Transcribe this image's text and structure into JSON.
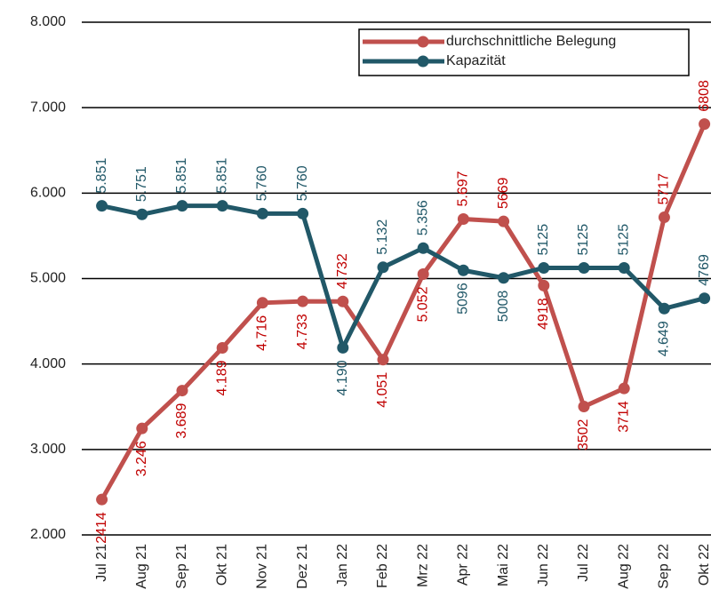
{
  "chart_data": {
    "type": "line",
    "categories": [
      "Jul 21",
      "Aug 21",
      "Sep 21",
      "Okt 21",
      "Nov 21",
      "Dez 21",
      "Jan 22",
      "Feb 22",
      "Mrz 22",
      "Apr 22",
      "Mai 22",
      "Jun 22",
      "Jul 22",
      "Aug 22",
      "Sep 22",
      "Okt 22"
    ],
    "series": [
      {
        "name": "durchschnittliche Belegung",
        "color": "#c0504d",
        "values": [
          2414,
          3246,
          3689,
          4189,
          4716,
          4733,
          4732,
          4051,
          5052,
          5697,
          5669,
          4918,
          3502,
          3714,
          5717,
          6808
        ],
        "value_labels": [
          "2414",
          "3.246",
          "3.689",
          "4.189",
          "4.716",
          "4.733",
          "4.732",
          "4.051",
          "5.052",
          "5.697",
          "5669",
          "4918",
          "3502",
          "3714",
          "5717",
          "6808"
        ]
      },
      {
        "name": "Kapazität",
        "color": "#215868",
        "values": [
          5851,
          5751,
          5851,
          5851,
          5760,
          5760,
          4190,
          5132,
          5356,
          5096,
          5008,
          5125,
          5125,
          5125,
          4649,
          4769
        ],
        "value_labels": [
          "5.851",
          "5.751",
          "5.851",
          "5.851",
          "5.760",
          "5.760",
          "4.190",
          "5.132",
          "5.356",
          "5096",
          "5008",
          "5125",
          "5125",
          "5125",
          "4.649",
          "4769"
        ]
      }
    ],
    "ylim": [
      2000,
      8000
    ],
    "yticks": [
      {
        "value": 2000,
        "label": "2.000"
      },
      {
        "value": 3000,
        "label": "3.000"
      },
      {
        "value": 4000,
        "label": "4.000"
      },
      {
        "value": 5000,
        "label": "5.000"
      },
      {
        "value": 6000,
        "label": "6.000"
      },
      {
        "value": 7000,
        "label": "7.000"
      },
      {
        "value": 8000,
        "label": "8.000"
      }
    ],
    "grid": true,
    "legend": "top-right"
  }
}
